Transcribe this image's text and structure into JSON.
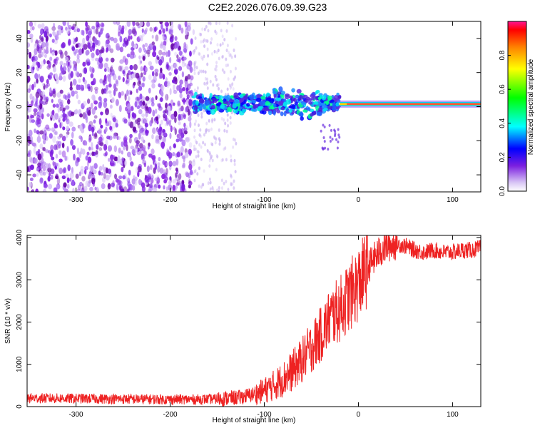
{
  "title": "C2E2.2026.076.09.39.G23",
  "chart_data": [
    {
      "type": "heatmap",
      "xlabel": "Height of straight line (km)",
      "ylabel": "Frequency (Hz)",
      "xlim": [
        -352,
        130
      ],
      "ylim": [
        -50,
        50
      ],
      "xticks": [
        -300,
        -200,
        -100,
        0,
        100
      ],
      "yticks": [
        -40,
        -20,
        0,
        20,
        40
      ],
      "colorbar": {
        "label": "Normalized spectral amplitude",
        "range": [
          0,
          1
        ],
        "ticks": [
          0.0,
          0.2,
          0.4,
          0.6,
          0.8
        ],
        "tick_labels": [
          "0.0",
          "0.2",
          "0.4",
          "0.6",
          "0.8"
        ]
      },
      "features": [
        {
          "x_range": [
            -352,
            -175
          ],
          "description": "broadband noise",
          "amplitude": 0.1
        },
        {
          "x_range": [
            -175,
            -20
          ],
          "frequency_hz": 2,
          "amplitude": 0.35
        },
        {
          "x_range": [
            -20,
            130
          ],
          "frequency_hz": 1.5,
          "amplitude": 0.9
        }
      ],
      "grid": false
    },
    {
      "type": "line",
      "xlabel": "Height of straight line (km)",
      "ylabel": "SNR (10 * v/v)",
      "xlim": [
        -352,
        130
      ],
      "ylim": [
        0,
        4050
      ],
      "xticks": [
        -300,
        -200,
        -100,
        0,
        100
      ],
      "yticks": [
        0,
        1000,
        2000,
        3000,
        4000
      ],
      "series": [
        {
          "color": "#ee2222",
          "x": [
            -350,
            -300,
            -250,
            -200,
            -175,
            -150,
            -125,
            -110,
            -100,
            -90,
            -80,
            -70,
            -60,
            -50,
            -40,
            -30,
            -20,
            -10,
            0,
            10,
            20,
            30,
            40,
            50,
            60,
            70,
            80,
            90,
            100,
            110,
            120,
            130
          ],
          "y": [
            200,
            190,
            180,
            170,
            170,
            180,
            220,
            300,
            380,
            500,
            650,
            850,
            1100,
            1400,
            1700,
            2100,
            2300,
            2600,
            2900,
            3300,
            3600,
            3800,
            3850,
            3800,
            3700,
            3650,
            3700,
            3650,
            3650,
            3700,
            3700,
            3750
          ]
        }
      ],
      "grid": false
    }
  ]
}
